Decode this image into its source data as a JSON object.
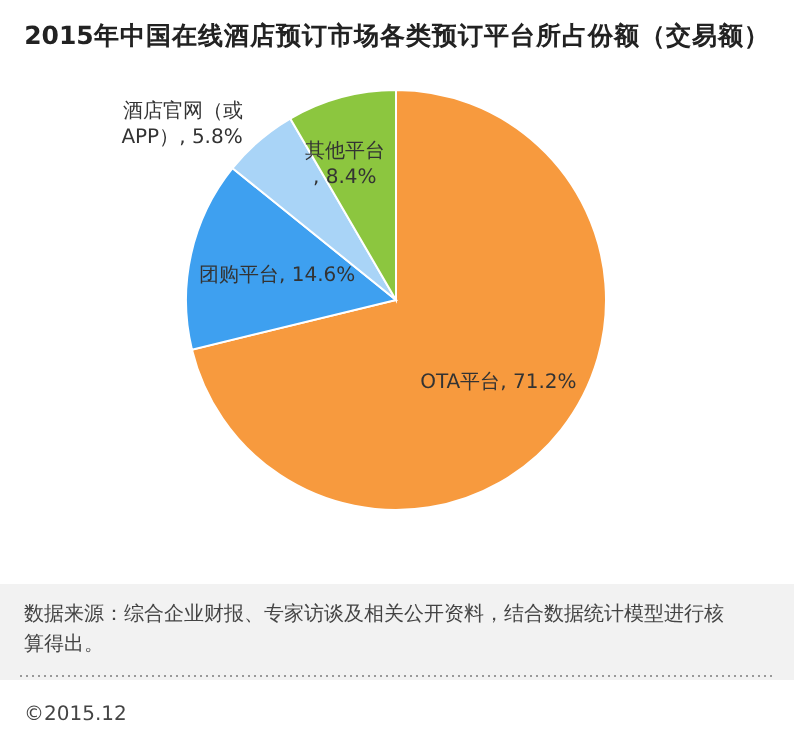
{
  "chart_data": {
    "type": "pie",
    "title": "2015年中国在线酒店预订市场各类预订平台所占份额（交易额）",
    "categories": [
      "OTA平台",
      "团购平台",
      "酒店官网（或APP）",
      "其他平台"
    ],
    "values": [
      71.2,
      14.6,
      5.8,
      8.4
    ],
    "value_labels": [
      ", 71.2%",
      ", 14.6%",
      ", 5.8%",
      ", 8.4%"
    ],
    "colors": [
      "#f79a3e",
      "#3ea0f0",
      "#a9d4f7",
      "#8cc63f"
    ],
    "annotations": [
      "数据来源：综合企业财报、专家访谈及相关公开资料，结合数据统计模型进行核算得出。",
      "©2015.12"
    ]
  }
}
